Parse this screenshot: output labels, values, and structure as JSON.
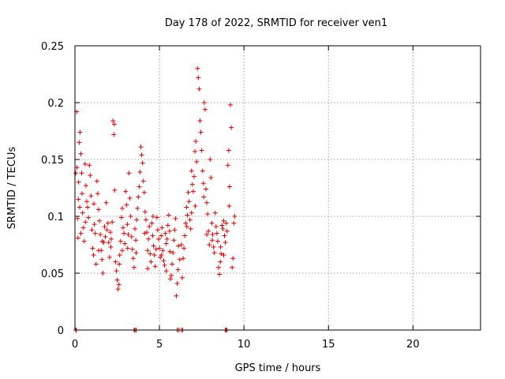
{
  "chart_data": {
    "type": "scatter",
    "title": "Day 178 of 2022, SRMTID for receiver ven1",
    "xlabel": "GPS time / hours",
    "ylabel": "SRMTID / TECUs",
    "xlim": [
      0,
      24
    ],
    "ylim": [
      0,
      0.25
    ],
    "xticks": [
      0,
      5,
      10,
      15,
      20
    ],
    "xtick_labels": [
      "0",
      "5",
      "10",
      "15",
      "20"
    ],
    "yticks": [
      0,
      0.05,
      0.1,
      0.15,
      0.2,
      0.25
    ],
    "ytick_labels": [
      "0",
      "0.05",
      "0.1",
      "0.15",
      "0.2",
      "0.25"
    ],
    "grid": true,
    "marker": "+",
    "color": "#e00000",
    "series": [
      {
        "name": "ven1",
        "points": [
          [
            0.05,
            0.138
          ],
          [
            0.1,
            0.192
          ],
          [
            0.12,
            0.143
          ],
          [
            0.15,
            0.098
          ],
          [
            0.18,
            0.081
          ],
          [
            0.2,
            0.115
          ],
          [
            0.22,
            0.13
          ],
          [
            0.25,
            0.165
          ],
          [
            0.3,
            0.174
          ],
          [
            0.35,
            0.155
          ],
          [
            0.4,
            0.138
          ],
          [
            0.42,
            0.12
          ],
          [
            0.45,
            0.103
          ],
          [
            0.5,
            0.09
          ],
          [
            0.55,
            0.078
          ],
          [
            0.6,
            0.146
          ],
          [
            0.65,
            0.127
          ],
          [
            0.7,
            0.113
          ],
          [
            0.75,
            0.108
          ],
          [
            0.8,
            0.099
          ],
          [
            0.85,
            0.145
          ],
          [
            0.9,
            0.136
          ],
          [
            0.95,
            0.118
          ],
          [
            1.0,
            0.088
          ],
          [
            1.05,
            0.072
          ],
          [
            1.1,
            0.066
          ],
          [
            1.15,
            0.093
          ],
          [
            1.2,
            0.085
          ],
          [
            1.25,
            0.058
          ],
          [
            1.3,
            0.131
          ],
          [
            1.35,
            0.12
          ],
          [
            1.4,
            0.106
          ],
          [
            1.45,
            0.096
          ],
          [
            1.5,
            0.084
          ],
          [
            1.55,
            0.07
          ],
          [
            1.6,
            0.062
          ],
          [
            1.65,
            0.05
          ],
          [
            1.7,
            0.077
          ],
          [
            1.75,
            0.091
          ],
          [
            1.8,
            0.082
          ],
          [
            1.85,
            0.112
          ],
          [
            1.9,
            0.088
          ],
          [
            1.95,
            0.094
          ],
          [
            2.0,
            0.077
          ],
          [
            2.05,
            0.064
          ],
          [
            2.1,
            0.086
          ],
          [
            2.15,
            0.08
          ],
          [
            2.2,
            0.095
          ],
          [
            2.25,
            0.184
          ],
          [
            2.3,
            0.172
          ],
          [
            2.33,
            0.181
          ],
          [
            2.35,
            0.123
          ],
          [
            2.4,
            0.06
          ],
          [
            2.45,
            0.052
          ],
          [
            2.5,
            0.044
          ],
          [
            2.55,
            0.036
          ],
          [
            2.6,
            0.04
          ],
          [
            2.65,
            0.066
          ],
          [
            2.7,
            0.078
          ],
          [
            2.75,
            0.099
          ],
          [
            2.8,
            0.107
          ],
          [
            2.85,
            0.09
          ],
          [
            2.9,
            0.085
          ],
          [
            2.95,
            0.076
          ],
          [
            3.0,
            0.122
          ],
          [
            3.05,
            0.11
          ],
          [
            3.1,
            0.093
          ],
          [
            3.15,
            0.084
          ],
          [
            3.2,
            0.138
          ],
          [
            3.25,
            0.116
          ],
          [
            3.3,
            0.1
          ],
          [
            3.35,
            0.082
          ],
          [
            3.4,
            0.071
          ],
          [
            3.45,
            0.063
          ],
          [
            3.5,
            0.055
          ],
          [
            3.55,
            0.089
          ],
          [
            3.6,
            0.079
          ],
          [
            3.65,
            0.097
          ],
          [
            3.7,
            0.107
          ],
          [
            3.75,
            0.117
          ],
          [
            3.8,
            0.126
          ],
          [
            3.85,
            0.139
          ],
          [
            3.9,
            0.161
          ],
          [
            3.95,
            0.154
          ],
          [
            4.0,
            0.147
          ],
          [
            4.05,
            0.131
          ],
          [
            4.1,
            0.121
          ],
          [
            4.15,
            0.104
          ],
          [
            4.2,
            0.097
          ],
          [
            4.25,
            0.086
          ],
          [
            4.3,
            0.07
          ],
          [
            4.35,
            0.08
          ],
          [
            4.4,
            0.091
          ],
          [
            4.45,
            0.067
          ],
          [
            4.5,
            0.06
          ],
          [
            4.55,
            0.094
          ],
          [
            4.6,
            0.083
          ],
          [
            4.65,
            0.074
          ],
          [
            4.7,
            0.066
          ],
          [
            4.75,
            0.056
          ],
          [
            4.8,
            0.071
          ],
          [
            4.85,
            0.099
          ],
          [
            4.9,
            0.088
          ],
          [
            4.95,
            0.08
          ],
          [
            5.0,
            0.072
          ],
          [
            5.05,
            0.064
          ],
          [
            5.1,
            0.083
          ],
          [
            5.15,
            0.09
          ],
          [
            5.2,
            0.07
          ],
          [
            5.25,
            0.061
          ],
          [
            5.3,
            0.057
          ],
          [
            5.35,
            0.085
          ],
          [
            5.4,
            0.076
          ],
          [
            5.45,
            0.08
          ],
          [
            5.5,
            0.092
          ],
          [
            5.55,
            0.101
          ],
          [
            5.6,
            0.087
          ],
          [
            5.65,
            0.045
          ],
          [
            5.7,
            0.048
          ],
          [
            5.75,
            0.058
          ],
          [
            5.8,
            0.068
          ],
          [
            5.85,
            0.079
          ],
          [
            5.9,
            0.088
          ],
          [
            5.95,
            0.098
          ],
          [
            6.0,
            0.03
          ],
          [
            6.05,
            0.041
          ],
          [
            6.1,
            0.053
          ],
          [
            6.2,
            0.062
          ],
          [
            6.3,
            0.075
          ],
          [
            6.35,
            0.046
          ],
          [
            6.4,
            0.063
          ],
          [
            6.45,
            0.072
          ],
          [
            6.5,
            0.083
          ],
          [
            6.55,
            0.094
          ],
          [
            6.6,
            0.108
          ],
          [
            6.65,
            0.101
          ],
          [
            6.7,
            0.121
          ],
          [
            6.75,
            0.113
          ],
          [
            6.8,
            0.097
          ],
          [
            6.85,
            0.089
          ],
          [
            6.9,
            0.14
          ],
          [
            6.95,
            0.128
          ],
          [
            7.0,
            0.122
          ],
          [
            7.05,
            0.135
          ],
          [
            7.1,
            0.157
          ],
          [
            7.15,
            0.166
          ],
          [
            7.2,
            0.148
          ],
          [
            7.25,
            0.23
          ],
          [
            7.3,
            0.222
          ],
          [
            7.35,
            0.212
          ],
          [
            7.4,
            0.184
          ],
          [
            7.45,
            0.174
          ],
          [
            7.5,
            0.158
          ],
          [
            7.55,
            0.14
          ],
          [
            7.6,
            0.129
          ],
          [
            7.65,
            0.2
          ],
          [
            7.7,
            0.194
          ],
          [
            7.75,
            0.124
          ],
          [
            7.8,
            0.112
          ],
          [
            7.85,
            0.102
          ],
          [
            7.9,
            0.087
          ],
          [
            7.95,
            0.075
          ],
          [
            8.0,
            0.15
          ],
          [
            8.05,
            0.134
          ],
          [
            8.1,
            0.094
          ],
          [
            8.15,
            0.084
          ],
          [
            8.2,
            0.073
          ],
          [
            8.25,
            0.068
          ],
          [
            8.3,
            0.103
          ],
          [
            8.35,
            0.091
          ],
          [
            8.4,
            0.085
          ],
          [
            8.45,
            0.078
          ],
          [
            8.5,
            0.055
          ],
          [
            8.55,
            0.049
          ],
          [
            8.6,
            0.06
          ],
          [
            8.65,
            0.067
          ],
          [
            8.7,
            0.092
          ],
          [
            8.75,
            0.089
          ],
          [
            8.8,
            0.096
          ],
          [
            8.85,
            0.083
          ],
          [
            8.9,
            0.077
          ],
          [
            8.95,
            0.094
          ],
          [
            9.0,
            0.087
          ],
          [
            9.05,
            0.145
          ],
          [
            9.1,
            0.158
          ],
          [
            9.15,
            0.126
          ],
          [
            9.2,
            0.198
          ],
          [
            9.25,
            0.178
          ],
          [
            9.3,
            0.055
          ],
          [
            9.35,
            0.063
          ],
          [
            9.4,
            0.094
          ],
          [
            9.45,
            0.1
          ],
          [
            0.28,
            0.108
          ],
          [
            0.62,
            0.095
          ],
          [
            1.12,
            0.111
          ],
          [
            1.62,
            0.078
          ],
          [
            2.12,
            0.073
          ],
          [
            2.62,
            0.058
          ],
          [
            3.12,
            0.072
          ],
          [
            3.62,
            0.068
          ],
          [
            4.12,
            0.085
          ],
          [
            4.62,
            0.1
          ],
          [
            5.12,
            0.066
          ],
          [
            5.62,
            0.069
          ],
          [
            6.12,
            0.074
          ],
          [
            6.62,
            0.091
          ],
          [
            7.12,
            0.109
          ],
          [
            7.62,
            0.117
          ],
          [
            8.12,
            0.079
          ],
          [
            8.62,
            0.073
          ],
          [
            9.12,
            0.109
          ],
          [
            0.35,
            0.085
          ],
          [
            1.4,
            0.07
          ],
          [
            2.8,
            0.07
          ],
          [
            4.3,
            0.054
          ],
          [
            5.4,
            0.052
          ],
          [
            6.9,
            0.103
          ],
          [
            7.8,
            0.084
          ],
          [
            8.8,
            0.066
          ]
        ],
        "zero_points": [
          0.05,
          0.08,
          3.5,
          3.55,
          3.62,
          6.05,
          6.15,
          6.3,
          6.38,
          8.9,
          8.95,
          9.0
        ]
      }
    ]
  }
}
